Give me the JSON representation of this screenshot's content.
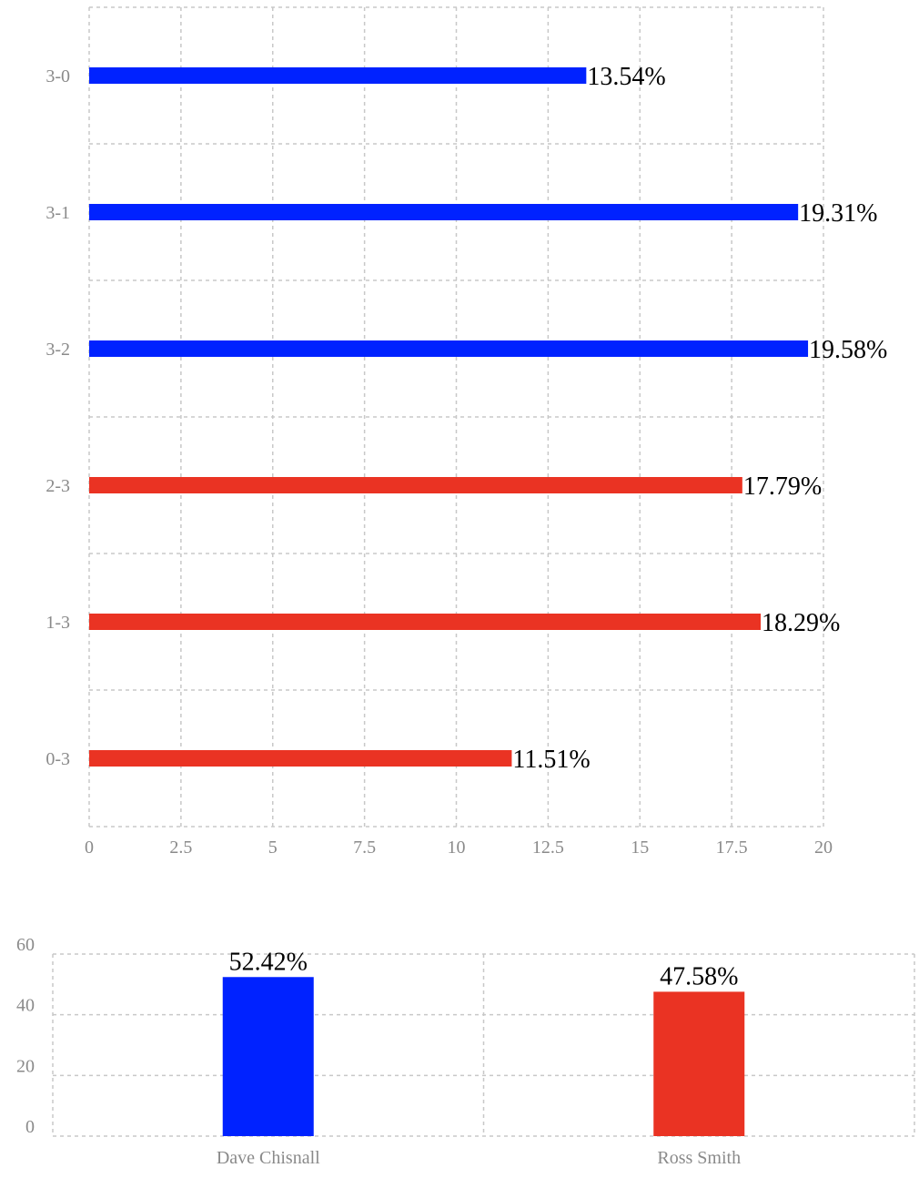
{
  "chart_data": [
    {
      "type": "bar",
      "orientation": "horizontal",
      "categories": [
        "3-0",
        "3-1",
        "3-2",
        "2-3",
        "1-3",
        "0-3"
      ],
      "values": [
        13.54,
        19.31,
        19.58,
        17.79,
        18.29,
        11.51
      ],
      "data_labels": [
        "13.54%",
        "19.31%",
        "19.58%",
        "17.79%",
        "18.29%",
        "11.51%"
      ],
      "bar_colors": [
        "#0022ff",
        "#0022ff",
        "#0022ff",
        "#ea3323",
        "#ea3323",
        "#ea3323"
      ],
      "x_ticks": [
        "0",
        "2.5",
        "5",
        "7.5",
        "10",
        "12.5",
        "15",
        "17.5",
        "20"
      ],
      "xlim": [
        0,
        20
      ],
      "grid": true,
      "title": "",
      "xlabel": "",
      "ylabel": ""
    },
    {
      "type": "bar",
      "orientation": "vertical",
      "categories": [
        "Dave Chisnall",
        "Ross Smith"
      ],
      "values": [
        52.42,
        47.58
      ],
      "data_labels": [
        "52.42%",
        "47.58%"
      ],
      "bar_colors": [
        "#0022ff",
        "#ea3323"
      ],
      "y_ticks": [
        "0",
        "20",
        "40",
        "60"
      ],
      "ylim": [
        0,
        60
      ],
      "grid": true,
      "title": "",
      "xlabel": "",
      "ylabel": ""
    }
  ]
}
